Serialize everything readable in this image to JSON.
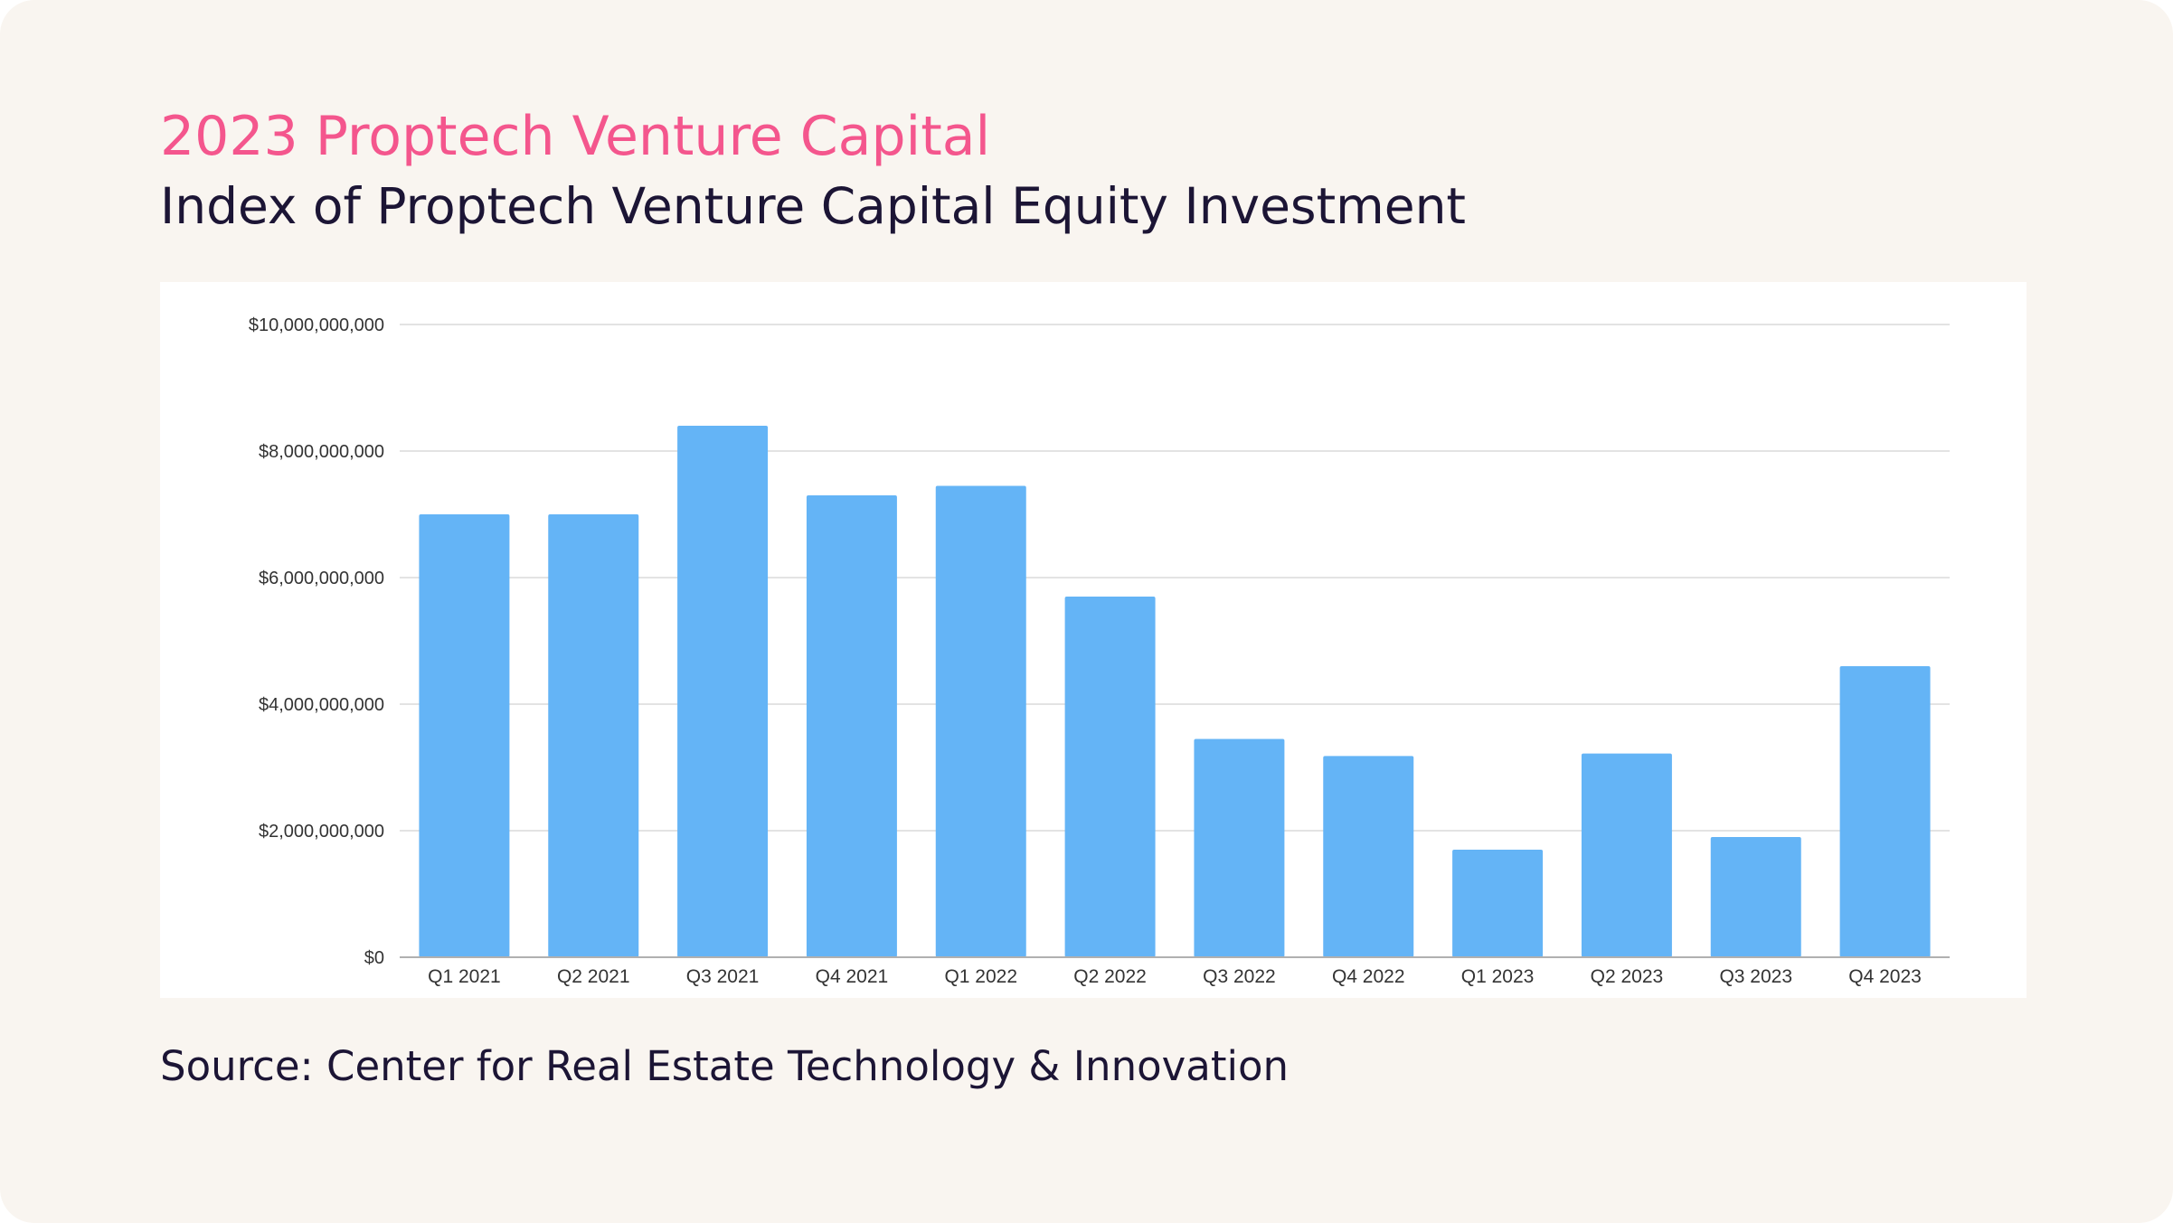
{
  "header": {
    "title": "2023 Proptech Venture Capital",
    "subtitle": "Index of Proptech Venture Capital Equity Investment"
  },
  "footer": {
    "source": "Source: Center for Real Estate Technology & Innovation"
  },
  "colors": {
    "title": "#f4568d",
    "text": "#1c1535",
    "background": "#f9f5f0",
    "bar": "#64b4f6",
    "gridline": "#e3e3e3",
    "axis": "#b0b0b0"
  },
  "chart_data": {
    "type": "bar",
    "title": "",
    "xlabel": "",
    "ylabel": "",
    "ylim": [
      0,
      10000000000
    ],
    "yticks": [
      0,
      2000000000,
      4000000000,
      6000000000,
      8000000000,
      10000000000
    ],
    "ytick_labels": [
      "$0",
      "$2,000,000,000",
      "$4,000,000,000",
      "$6,000,000,000",
      "$8,000,000,000",
      "$10,000,000,000"
    ],
    "grid": true,
    "legend": "none",
    "categories": [
      "Q1 2021",
      "Q2 2021",
      "Q3 2021",
      "Q4 2021",
      "Q1 2022",
      "Q2 2022",
      "Q3 2022",
      "Q4 2022",
      "Q1 2023",
      "Q2 2023",
      "Q3 2023",
      "Q4 2023"
    ],
    "values": [
      7000000000,
      7000000000,
      8400000000,
      7300000000,
      7450000000,
      5700000000,
      3450000000,
      3180000000,
      1700000000,
      3220000000,
      1900000000,
      4600000000
    ]
  }
}
